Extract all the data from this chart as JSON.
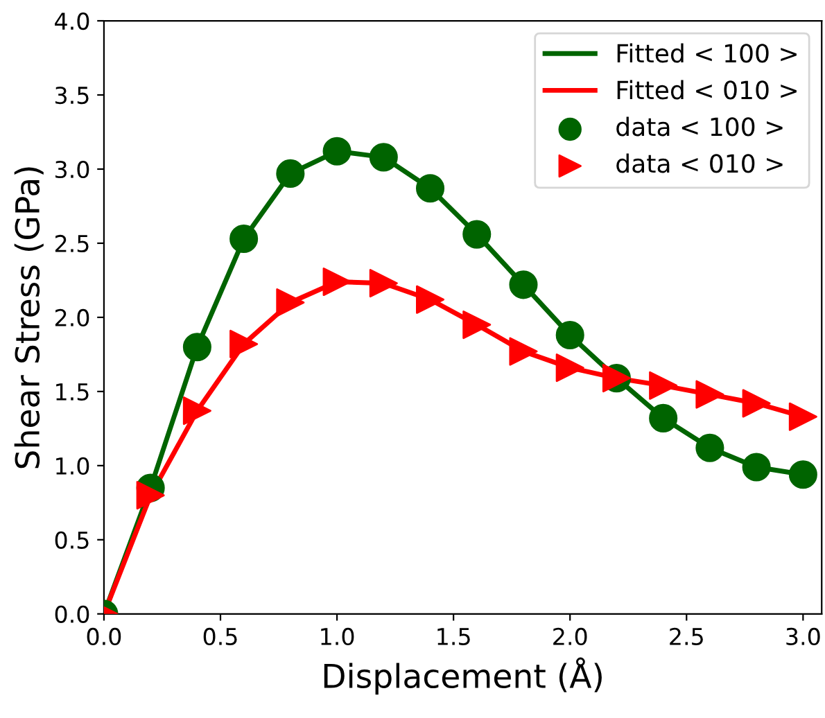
{
  "chart_data": {
    "type": "line",
    "xlabel": "Displacement (Å)",
    "ylabel": "Shear Stress (GPa)",
    "x": [
      0.0,
      0.2,
      0.4,
      0.6,
      0.8,
      1.0,
      1.2,
      1.4,
      1.6,
      1.8,
      2.0,
      2.2,
      2.4,
      2.6,
      2.8,
      3.0
    ],
    "series": [
      {
        "name": "Fitted < 100 >",
        "color": "#006400",
        "marker": "none",
        "values": [
          0.0,
          0.85,
          1.8,
          2.53,
          2.97,
          3.12,
          3.08,
          2.87,
          2.56,
          2.22,
          1.88,
          1.59,
          1.32,
          1.12,
          0.99,
          0.94
        ]
      },
      {
        "name": "Fitted < 010 >",
        "color": "#ff0000",
        "marker": "none",
        "values": [
          0.0,
          0.8,
          1.37,
          1.82,
          2.1,
          2.24,
          2.23,
          2.12,
          1.95,
          1.77,
          1.66,
          1.59,
          1.54,
          1.48,
          1.42,
          1.33
        ]
      },
      {
        "name": "data < 100 >",
        "type": "scatter",
        "color": "#006400",
        "marker": "circle",
        "values": [
          0.0,
          0.85,
          1.8,
          2.53,
          2.97,
          3.12,
          3.08,
          2.87,
          2.56,
          2.22,
          1.88,
          1.59,
          1.32,
          1.12,
          0.99,
          0.94
        ]
      },
      {
        "name": "data < 010 >",
        "type": "scatter",
        "color": "#ff0000",
        "marker": "triangle",
        "values": [
          0.0,
          0.8,
          1.37,
          1.82,
          2.1,
          2.24,
          2.23,
          2.12,
          1.95,
          1.77,
          1.66,
          1.59,
          1.54,
          1.48,
          1.42,
          1.33
        ]
      }
    ],
    "xlim": [
      0,
      3.08
    ],
    "ylim": [
      0,
      4.0
    ],
    "xticks": [
      {
        "value": 0,
        "label": "0.0"
      },
      {
        "value": 0.5,
        "label": "0.5"
      },
      {
        "value": 1,
        "label": "1.0"
      },
      {
        "value": 1.5,
        "label": "1.5"
      },
      {
        "value": 2,
        "label": "2.0"
      },
      {
        "value": 2.5,
        "label": "2.5"
      },
      {
        "value": 3,
        "label": "3.0"
      }
    ],
    "yticks": [
      {
        "value": 0,
        "label": "0.0"
      },
      {
        "value": 0.5,
        "label": "0.5"
      },
      {
        "value": 1,
        "label": "1.0"
      },
      {
        "value": 1.5,
        "label": "1.5"
      },
      {
        "value": 2,
        "label": "2.0"
      },
      {
        "value": 2.5,
        "label": "2.5"
      },
      {
        "value": 3,
        "label": "3.0"
      },
      {
        "value": 3.5,
        "label": "3.5"
      },
      {
        "value": 4,
        "label": "4.0"
      }
    ],
    "legend": "top right",
    "grid": false,
    "line_style": "solid"
  }
}
